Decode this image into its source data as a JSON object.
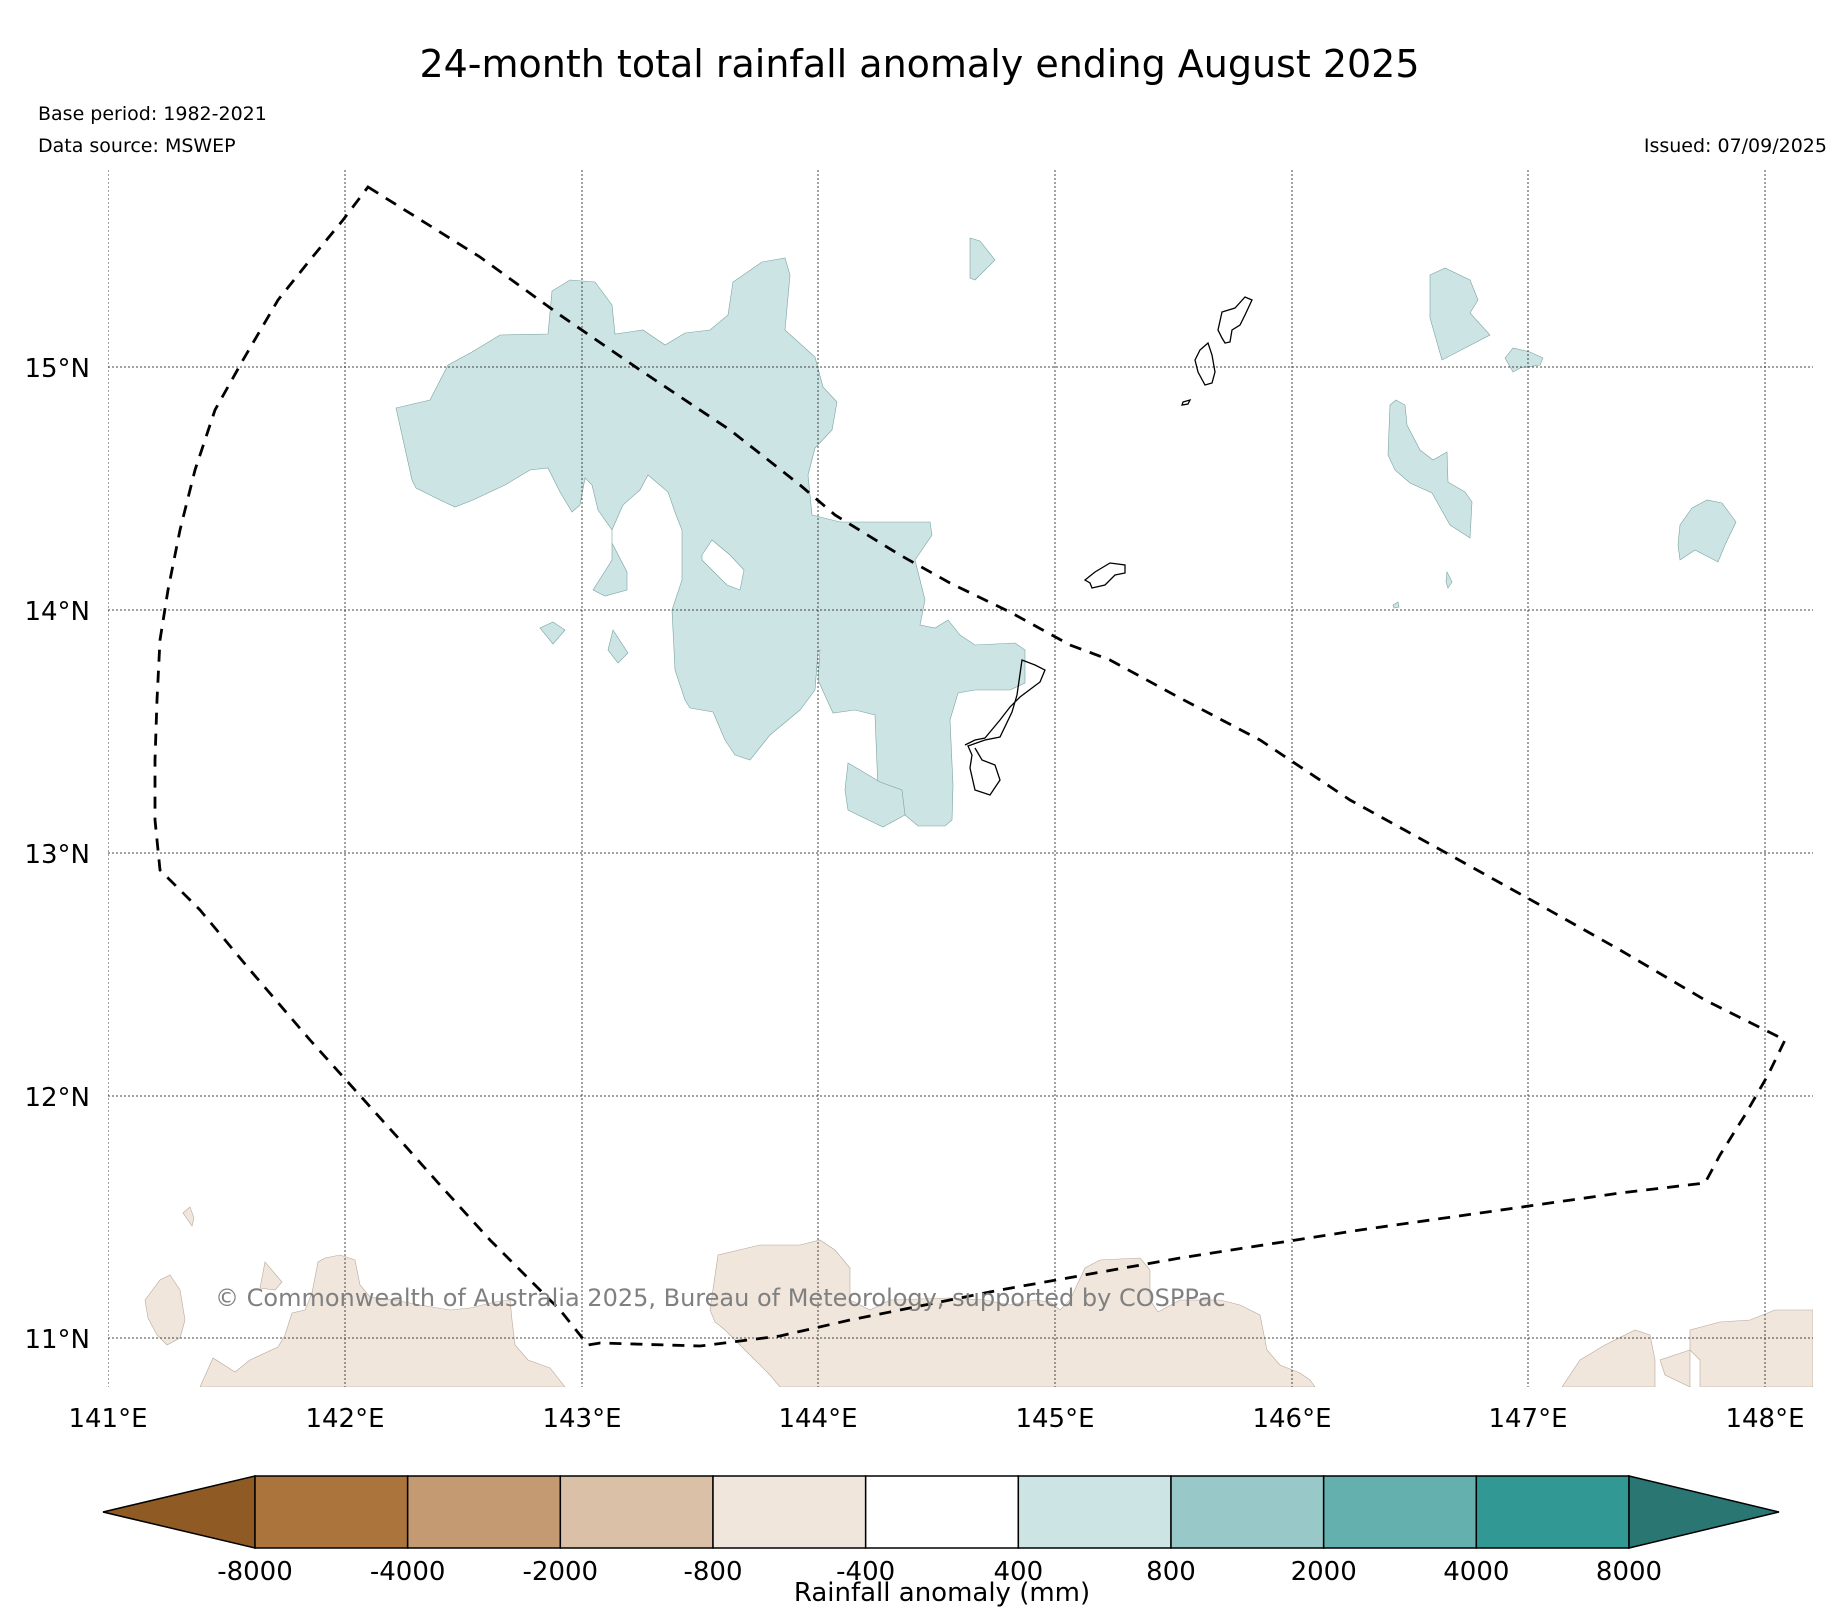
{
  "map": {
    "title": "24-month total rainfall anomaly ending August 2025",
    "base_period": "Base period: 1982-2021",
    "data_source": "Data source: MSWEP",
    "issued": "Issued: 07/09/2025",
    "copyright": "© Commonwealth of Australia 2025, Bureau of Meteorology, supported by COSPPac",
    "lon_labels": [
      "141°E",
      "142°E",
      "143°E",
      "144°E",
      "145°E",
      "146°E",
      "147°E",
      "148°E"
    ],
    "lat_labels": [
      "15°N",
      "14°N",
      "13°N",
      "12°N",
      "11°N"
    ]
  },
  "colorbar": {
    "label": "Rainfall anomaly (mm)",
    "ticks": [
      "-8000",
      "-4000",
      "-2000",
      "-800",
      "-400",
      "400",
      "800",
      "2000",
      "4000",
      "8000"
    ],
    "colors": {
      "below_min": "#8f5a24",
      "bins": [
        "#ab743c",
        "#c49a72",
        "#d9c0a7",
        "#f0e6dc",
        "#ffffff",
        "#cce4e3",
        "#98c9c8",
        "#63b0af",
        "#319894"
      ],
      "above_max": "#2a7673"
    }
  },
  "colors": {
    "wet": "#cce4e3",
    "dry": "#f0e6dc",
    "grid": "#444444",
    "boundary": "#000000",
    "copyright": "#808080"
  }
}
